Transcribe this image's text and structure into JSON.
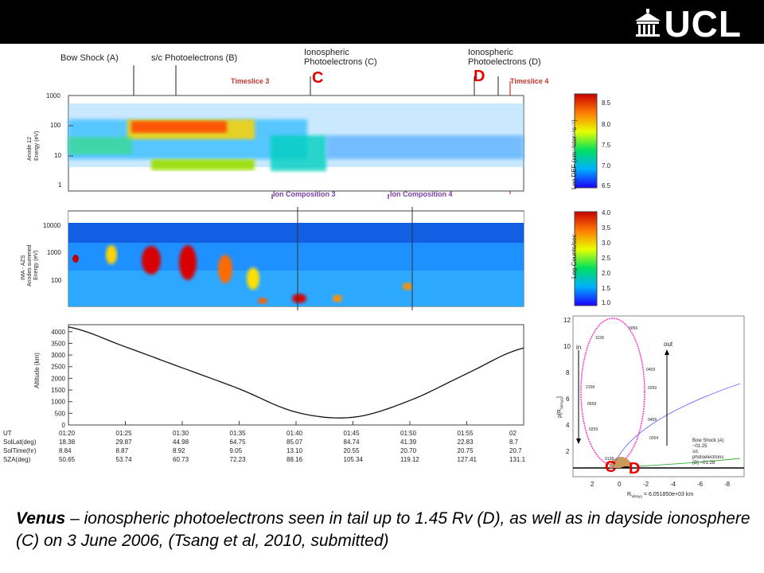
{
  "header": {
    "logo_text": "UCL",
    "bar_color": "#000000"
  },
  "annotations": {
    "bow_shock": "Bow Shock (A)",
    "sc_photo": "s/c Photoelectrons (B)",
    "iono_c_1": "Ionospheric",
    "iono_c_2": "Photoelectrons (C)",
    "iono_d_1": "Ionospheric",
    "iono_d_2": "Photoelectrons (D)",
    "timeslice3": "Timeslice 3",
    "timeslice4": "Timeslice 4",
    "label_c": "C",
    "label_d": "D",
    "ion_comp3": "Ion Composition 3",
    "ion_comp4": "Ion Composition 4"
  },
  "panel1": {
    "ylabel_1": "Anode 12",
    "ylabel_2": "Energy (eV)",
    "yticks": [
      "1000",
      "100",
      "10",
      "1"
    ],
    "colorbar_label": "Log DEF (cm⁻²ster⁻¹s⁻¹)",
    "colorbar_ticks": [
      "8.5",
      "8.0",
      "7.5",
      "7.0",
      "6.5"
    ]
  },
  "panel2": {
    "ylabel_1": "IMA - AZS",
    "ylabel_2": "Anodes summed",
    "ylabel_3": "Energy (eV)",
    "yticks": [
      "10000",
      "1000",
      "100"
    ],
    "colorbar_label": "Log Counts/sec",
    "colorbar_ticks": [
      "4.0",
      "3.5",
      "3.0",
      "2.5",
      "2.0",
      "1.5",
      "1.0"
    ]
  },
  "table": {
    "row_labels": [
      "UT",
      "SolLat(deg)",
      "SolTime(hr)",
      "SZA(deg)"
    ],
    "ut": [
      "01:20",
      "01:25",
      "01:30",
      "01:35",
      "01:40",
      "01:45",
      "01:50",
      "01:55",
      "02"
    ],
    "sollat": [
      "18.38",
      "29.87",
      "44.98",
      "64.75",
      "85.07",
      "84.74",
      "41.39",
      "22.83",
      "8.7"
    ],
    "soltime": [
      "8.84",
      "8.87",
      "8.92",
      "9.05",
      "13.10",
      "20.55",
      "20.70",
      "20.75",
      "20.7"
    ],
    "sza": [
      "50.65",
      "53.74",
      "60.73",
      "72.23",
      "88.16",
      "105.34",
      "119.12",
      "127.41",
      "131.1"
    ]
  },
  "orbit": {
    "ylabel": "ρ[R",
    "ylabel_sub": "Venus",
    "ylabel_end": "]",
    "xlabel": "R",
    "xlabel_sub": "Venus",
    "xlabel_end": " = 6.051850e+03 km",
    "yticks": [
      "12",
      "10",
      "8",
      "6",
      "4",
      "2"
    ],
    "xticks": [
      "2",
      "0",
      "-2",
      "-4",
      "-6",
      "-8"
    ],
    "in_label": "in",
    "out_label": "out",
    "times": [
      "0056",
      "1158",
      "0459",
      "0259",
      "2158",
      "0558",
      "0458",
      "0259",
      "0254",
      "0138"
    ],
    "legend_lines": [
      "Bow Shock (A)",
      "~01:25",
      "s/c",
      "photoelectrons",
      "(B) ~01:28"
    ],
    "label_c": "C",
    "label_d": "D"
  },
  "caption": {
    "lead": "Venus",
    "rest": " – ionospheric photoelectrons seen in tail up to 1.45 Rv (D), as well as in dayside ionosphere (C) on 3 June 2006, (Tsang et al, 2010, submitted)"
  },
  "chart_data": {
    "type": "line",
    "title": "",
    "xlabel": "UT",
    "ylabel": "Altitude (km)",
    "x": [
      "01:20",
      "01:25",
      "01:30",
      "01:35",
      "01:40",
      "01:45",
      "01:50",
      "01:55",
      "02"
    ],
    "series": [
      {
        "values": [
          4200,
          3350,
          2450,
          1550,
          550,
          330,
          1050,
          2200,
          3300
        ]
      }
    ],
    "yticks": [
      "4000",
      "3500",
      "3000",
      "2500",
      "2000",
      "1500",
      "1000",
      "500",
      "0"
    ],
    "ylim": [
      0,
      4300
    ]
  }
}
